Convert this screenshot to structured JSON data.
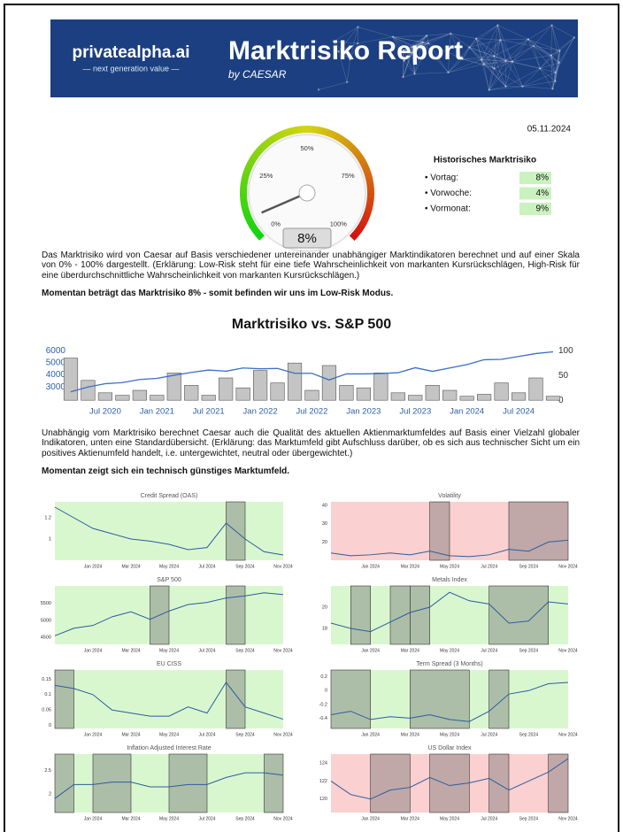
{
  "header": {
    "brand": "privatealpha.ai",
    "tagline": "— next generation value —",
    "title": "Marktrisiko Report",
    "subtitle": "by CAESAR"
  },
  "date": "05.11.2024",
  "gauge": {
    "value": 8,
    "value_label": "8%",
    "range": [
      0,
      100
    ],
    "ticks": [
      {
        "value": 0,
        "label": "0%"
      },
      {
        "value": 25,
        "label": "25%"
      },
      {
        "value": 50,
        "label": "50%"
      },
      {
        "value": 75,
        "label": "75%"
      },
      {
        "value": 100,
        "label": "100%"
      }
    ]
  },
  "history": {
    "title": "Historisches Marktrisiko",
    "items": [
      {
        "label": "• Vortag:",
        "value": "8%"
      },
      {
        "label": "• Vorwoche:",
        "value": "4%"
      },
      {
        "label": "• Vormonat:",
        "value": "9%"
      }
    ]
  },
  "text": {
    "paragraph1": "Das Marktrisiko wird von Caesar auf Basis verschiedener untereinander unabhängiger Marktindikatoren berechnet und auf einer Skala von 0% - 100% dargestellt. (Erklärung: Low-Risk steht für eine tiefe Wahrscheinlichkeit von markanten Kursrückschlägen, High-Risk für eine überdurchschnittliche Wahrscheinlichkeit von markanten Kursrückschlägen.)",
    "summary1": "Momentan beträgt das Marktrisiko 8% - somit befinden wir uns im Low-Risk Modus.",
    "paragraph2": "Unabhängig vom Marktrisiko berechnet Caesar auch die Qualität des aktuellen Aktienmarktumfeldes auf Basis einer Vielzahl globaler Indikatoren, unten eine Standardübersicht. (Erklärung: das Marktumfeld gibt Aufschluss darüber, ob es sich aus technischer Sicht um ein positives Aktienumfeld handelt, i.e. untergewichtet, neutral oder übergewichtet.)",
    "summary2": "Momentan zeigt sich ein technisch günstiges Marktumfeld."
  },
  "chart_data": [
    {
      "type": "bar-line",
      "title": "Marktrisiko vs. S&P 500",
      "x": [
        "2020-03",
        "2020-05",
        "2020-07",
        "2020-09",
        "2020-11",
        "2021-01",
        "2021-03",
        "2021-05",
        "2021-07",
        "2021-09",
        "2021-11",
        "2022-01",
        "2022-03",
        "2022-05",
        "2022-07",
        "2022-09",
        "2022-11",
        "2023-01",
        "2023-03",
        "2023-05",
        "2023-07",
        "2023-09",
        "2023-11",
        "2024-01",
        "2024-03",
        "2024-05",
        "2024-07",
        "2024-09",
        "2024-11"
      ],
      "series": [
        {
          "color": "#c4c4c4",
          "axis": "y2",
          "values": [
            85,
            40,
            15,
            10,
            20,
            10,
            55,
            30,
            10,
            45,
            25,
            60,
            35,
            75,
            20,
            70,
            30,
            25,
            55,
            15,
            10,
            30,
            20,
            8,
            12,
            35,
            15,
            45,
            8
          ]
        },
        {
          "color": "#3a6fc4",
          "values": [
            2600,
            3000,
            3270,
            3360,
            3620,
            3710,
            3970,
            4200,
            4400,
            4300,
            4570,
            4500,
            4530,
            4130,
            4130,
            3580,
            4080,
            4080,
            4110,
            4180,
            4590,
            4290,
            4570,
            4850,
            5250,
            5280,
            5520,
            5760,
            5900
          ]
        }
      ],
      "xlim": [
        "2020-03",
        "2024-11"
      ],
      "ylim": [
        1700,
        6450
      ],
      "y2lim": [
        -5,
        111
      ],
      "yticks": [
        3000,
        4000,
        5000,
        6000
      ],
      "y2ticks": [
        0,
        50,
        100
      ],
      "xticks": [
        {
          "value": "2020-07",
          "label": "Jul 2020"
        },
        {
          "value": "2021-01",
          "label": "Jan 2021"
        },
        {
          "value": "2021-07",
          "label": "Jul 2021"
        },
        {
          "value": "2022-01",
          "label": "Jan 2022"
        },
        {
          "value": "2022-07",
          "label": "Jul 2022"
        },
        {
          "value": "2023-01",
          "label": "Jan 2023"
        },
        {
          "value": "2023-07",
          "label": "Jul 2023"
        },
        {
          "value": "2024-01",
          "label": "Jan 2024"
        },
        {
          "value": "2024-07",
          "label": "Jul 2024"
        }
      ]
    },
    {
      "type": "line",
      "title": "Credit Spread (OAS)",
      "background": "#d9f7cf",
      "color": "#2a5d9f",
      "x": [
        "2023-11",
        "2023-12",
        "2024-01",
        "2024-02",
        "2024-03",
        "2024-04",
        "2024-05",
        "2024-06",
        "2024-07",
        "2024-08",
        "2024-09",
        "2024-10",
        "2024-11"
      ],
      "values": [
        1.3,
        1.2,
        1.1,
        1.05,
        1.0,
        0.98,
        0.95,
        0.9,
        0.92,
        1.15,
        1.0,
        0.88,
        0.85
      ],
      "shading": [
        [
          "2024-08",
          "2024-09"
        ]
      ],
      "xlim": [
        "2023-11",
        "2024-11"
      ],
      "ylim": [
        0.8,
        1.35
      ],
      "yticks": [
        1,
        1.2
      ],
      "xticks": [
        {
          "value": "2024-01",
          "label": "Jan 2024"
        },
        {
          "value": "2024-03",
          "label": "Mar 2024"
        },
        {
          "value": "2024-05",
          "label": "May 2024"
        },
        {
          "value": "2024-07",
          "label": "Jul 2024"
        },
        {
          "value": "2024-09",
          "label": "Sep 2024"
        },
        {
          "value": "2024-11",
          "label": "Nov 2024"
        }
      ]
    },
    {
      "type": "line",
      "title": "Volatility",
      "background": "#fbd0d0",
      "color": "#2a5d9f",
      "x": [
        "2023-11",
        "2023-12",
        "2024-01",
        "2024-02",
        "2024-03",
        "2024-04",
        "2024-05",
        "2024-06",
        "2024-07",
        "2024-08",
        "2024-09",
        "2024-10",
        "2024-11"
      ],
      "values": [
        14,
        12.5,
        13,
        14,
        13,
        15,
        12.5,
        12,
        13,
        16,
        15,
        20,
        21
      ],
      "shading": [
        [
          "2024-04",
          "2024-05"
        ],
        [
          "2024-08",
          "2024-11"
        ]
      ],
      "xlim": [
        "2023-11",
        "2024-11"
      ],
      "ylim": [
        10,
        42
      ],
      "yticks": [
        20,
        30,
        40
      ],
      "xticks": [
        {
          "value": "2024-01",
          "label": "Jan 2024"
        },
        {
          "value": "2024-03",
          "label": "Mar 2024"
        },
        {
          "value": "2024-05",
          "label": "May 2024"
        },
        {
          "value": "2024-07",
          "label": "Jul 2024"
        },
        {
          "value": "2024-09",
          "label": "Sep 2024"
        },
        {
          "value": "2024-11",
          "label": "Nov 2024"
        }
      ]
    },
    {
      "type": "line",
      "title": "S&P 500",
      "background": "#d9f7cf",
      "color": "#2a5d9f",
      "x": [
        "2023-11",
        "2023-12",
        "2024-01",
        "2024-02",
        "2024-03",
        "2024-04",
        "2024-05",
        "2024-06",
        "2024-07",
        "2024-08",
        "2024-09",
        "2024-10",
        "2024-11"
      ],
      "values": [
        4550,
        4770,
        4850,
        5100,
        5250,
        5030,
        5270,
        5460,
        5520,
        5650,
        5710,
        5800,
        5750
      ],
      "shading": [
        [
          "2024-04",
          "2024-05"
        ],
        [
          "2024-08",
          "2024-09"
        ]
      ],
      "xlim": [
        "2023-11",
        "2024-11"
      ],
      "ylim": [
        4300,
        6000
      ],
      "yticks": [
        4500,
        5000,
        5500
      ],
      "xticks": [
        {
          "value": "2024-01",
          "label": "Jan 2024"
        },
        {
          "value": "2024-03",
          "label": "Mar 2024"
        },
        {
          "value": "2024-05",
          "label": "May 2024"
        },
        {
          "value": "2024-07",
          "label": "Jul 2024"
        },
        {
          "value": "2024-09",
          "label": "Sep 2024"
        },
        {
          "value": "2024-11",
          "label": "Nov 2024"
        }
      ]
    },
    {
      "type": "line",
      "title": "Metals Index",
      "background": "#d9f7cf",
      "color": "#2a5d9f",
      "x": [
        "2023-11",
        "2023-12",
        "2024-01",
        "2024-02",
        "2024-03",
        "2024-04",
        "2024-05",
        "2024-06",
        "2024-07",
        "2024-08",
        "2024-09",
        "2024-10",
        "2024-11"
      ],
      "values": [
        18.5,
        18.0,
        17.7,
        18.6,
        19.5,
        20.0,
        21.4,
        20.6,
        20.3,
        18.5,
        18.7,
        20.5,
        20.3
      ],
      "shading": [
        [
          "2023-12",
          "2024-01"
        ],
        [
          "2024-02",
          "2024-03"
        ],
        [
          "2024-03",
          "2024-04"
        ],
        [
          "2024-07",
          "2024-10"
        ]
      ],
      "xlim": [
        "2023-11",
        "2024-11"
      ],
      "ylim": [
        16.5,
        22
      ],
      "yticks": [
        18,
        20
      ],
      "xticks": [
        {
          "value": "2024-01",
          "label": "Jan 2024"
        },
        {
          "value": "2024-03",
          "label": "Mar 2024"
        },
        {
          "value": "2024-05",
          "label": "May 2024"
        },
        {
          "value": "2024-07",
          "label": "Jul 2024"
        },
        {
          "value": "2024-09",
          "label": "Sep 2024"
        },
        {
          "value": "2024-11",
          "label": "Nov 2024"
        }
      ]
    },
    {
      "type": "line",
      "title": "EU CISS",
      "background": "#d9f7cf",
      "color": "#2a5d9f",
      "x": [
        "2023-11",
        "2023-12",
        "2024-01",
        "2024-02",
        "2024-03",
        "2024-04",
        "2024-05",
        "2024-06",
        "2024-07",
        "2024-08",
        "2024-09",
        "2024-10",
        "2024-11"
      ],
      "values": [
        0.13,
        0.12,
        0.1,
        0.05,
        0.04,
        0.03,
        0.03,
        0.06,
        0.04,
        0.14,
        0.06,
        0.04,
        0.02
      ],
      "shading": [
        [
          "2023-11",
          "2023-12"
        ],
        [
          "2024-08",
          "2024-09"
        ]
      ],
      "xlim": [
        "2023-11",
        "2024-11"
      ],
      "ylim": [
        -0.01,
        0.18
      ],
      "yticks": [
        0,
        0.05,
        0.1,
        0.15
      ],
      "xticks": [
        {
          "value": "2024-01",
          "label": "Jan 2024"
        },
        {
          "value": "2024-03",
          "label": "Mar 2024"
        },
        {
          "value": "2024-05",
          "label": "May 2024"
        },
        {
          "value": "2024-07",
          "label": "Jul 2024"
        },
        {
          "value": "2024-09",
          "label": "Sep 2024"
        },
        {
          "value": "2024-11",
          "label": "Nov 2024"
        }
      ]
    },
    {
      "type": "line",
      "title": "Term Spread (3 Months)",
      "background": "#d9f7cf",
      "color": "#2a5d9f",
      "x": [
        "2023-11",
        "2023-12",
        "2024-01",
        "2024-02",
        "2024-03",
        "2024-04",
        "2024-05",
        "2024-06",
        "2024-07",
        "2024-08",
        "2024-09",
        "2024-10",
        "2024-11"
      ],
      "values": [
        -0.35,
        -0.3,
        -0.42,
        -0.38,
        -0.4,
        -0.35,
        -0.42,
        -0.45,
        -0.3,
        -0.05,
        0,
        0.1,
        0.12
      ],
      "shading": [
        [
          "2023-11",
          "2024-01"
        ],
        [
          "2024-03",
          "2024-06"
        ],
        [
          "2024-07",
          "2024-08"
        ]
      ],
      "xlim": [
        "2023-11",
        "2024-11"
      ],
      "ylim": [
        -0.55,
        0.3
      ],
      "yticks": [
        -0.4,
        -0.2,
        0,
        0.2
      ],
      "xticks": [
        {
          "value": "2024-01",
          "label": "Jan 2024"
        },
        {
          "value": "2024-03",
          "label": "Mar 2024"
        },
        {
          "value": "2024-05",
          "label": "May 2024"
        },
        {
          "value": "2024-07",
          "label": "Jul 2024"
        },
        {
          "value": "2024-09",
          "label": "Sep 2024"
        },
        {
          "value": "2024-11",
          "label": "Nov 2024"
        }
      ]
    },
    {
      "type": "line",
      "title": "Inflation Adjusted Interest Rate",
      "background": "#d9f7cf",
      "color": "#2a5d9f",
      "x": [
        "2023-11",
        "2023-12",
        "2024-01",
        "2024-02",
        "2024-03",
        "2024-04",
        "2024-05",
        "2024-06",
        "2024-07",
        "2024-08",
        "2024-09",
        "2024-10",
        "2024-11"
      ],
      "values": [
        1.9,
        2.2,
        2.2,
        2.25,
        2.25,
        2.15,
        2.15,
        2.2,
        2.2,
        2.35,
        2.45,
        2.45,
        2.4
      ],
      "shading": [
        [
          "2023-11",
          "2023-12"
        ],
        [
          "2024-01",
          "2024-03"
        ],
        [
          "2024-05",
          "2024-07"
        ],
        [
          "2024-10",
          "2024-11"
        ]
      ],
      "xlim": [
        "2023-11",
        "2024-11"
      ],
      "ylim": [
        1.6,
        2.85
      ],
      "yticks": [
        2,
        2.5
      ],
      "xticks": [
        {
          "value": "2024-01",
          "label": "Jan 2024"
        },
        {
          "value": "2024-03",
          "label": "Mar 2024"
        },
        {
          "value": "2024-05",
          "label": "May 2024"
        },
        {
          "value": "2024-07",
          "label": "Jul 2024"
        },
        {
          "value": "2024-09",
          "label": "Sep 2024"
        },
        {
          "value": "2024-11",
          "label": "Nov 2024"
        }
      ]
    },
    {
      "type": "line",
      "title": "US Dollar Index",
      "background": "#fbd0d0",
      "color": "#2a5d9f",
      "x": [
        "2023-11",
        "2023-12",
        "2024-01",
        "2024-02",
        "2024-03",
        "2024-04",
        "2024-05",
        "2024-06",
        "2024-07",
        "2024-08",
        "2024-09",
        "2024-10",
        "2024-11"
      ],
      "values": [
        122,
        120.5,
        120,
        121,
        121.3,
        122.4,
        121.5,
        121.8,
        122.3,
        121,
        122,
        123,
        124.5
      ],
      "shading": [
        [
          "2024-01",
          "2024-03"
        ],
        [
          "2024-04",
          "2024-06"
        ],
        [
          "2024-07",
          "2024-08"
        ],
        [
          "2024-10",
          "2024-11"
        ]
      ],
      "xlim": [
        "2023-11",
        "2024-11"
      ],
      "ylim": [
        118.5,
        125
      ],
      "yticks": [
        120,
        122,
        124
      ],
      "xticks": [
        {
          "value": "2024-01",
          "label": "Jan 2024"
        },
        {
          "value": "2024-03",
          "label": "Mar 2024"
        },
        {
          "value": "2024-05",
          "label": "May 2024"
        },
        {
          "value": "2024-07",
          "label": "Jul 2024"
        },
        {
          "value": "2024-09",
          "label": "Sep 2024"
        },
        {
          "value": "2024-11",
          "label": "Nov 2024"
        }
      ]
    }
  ]
}
